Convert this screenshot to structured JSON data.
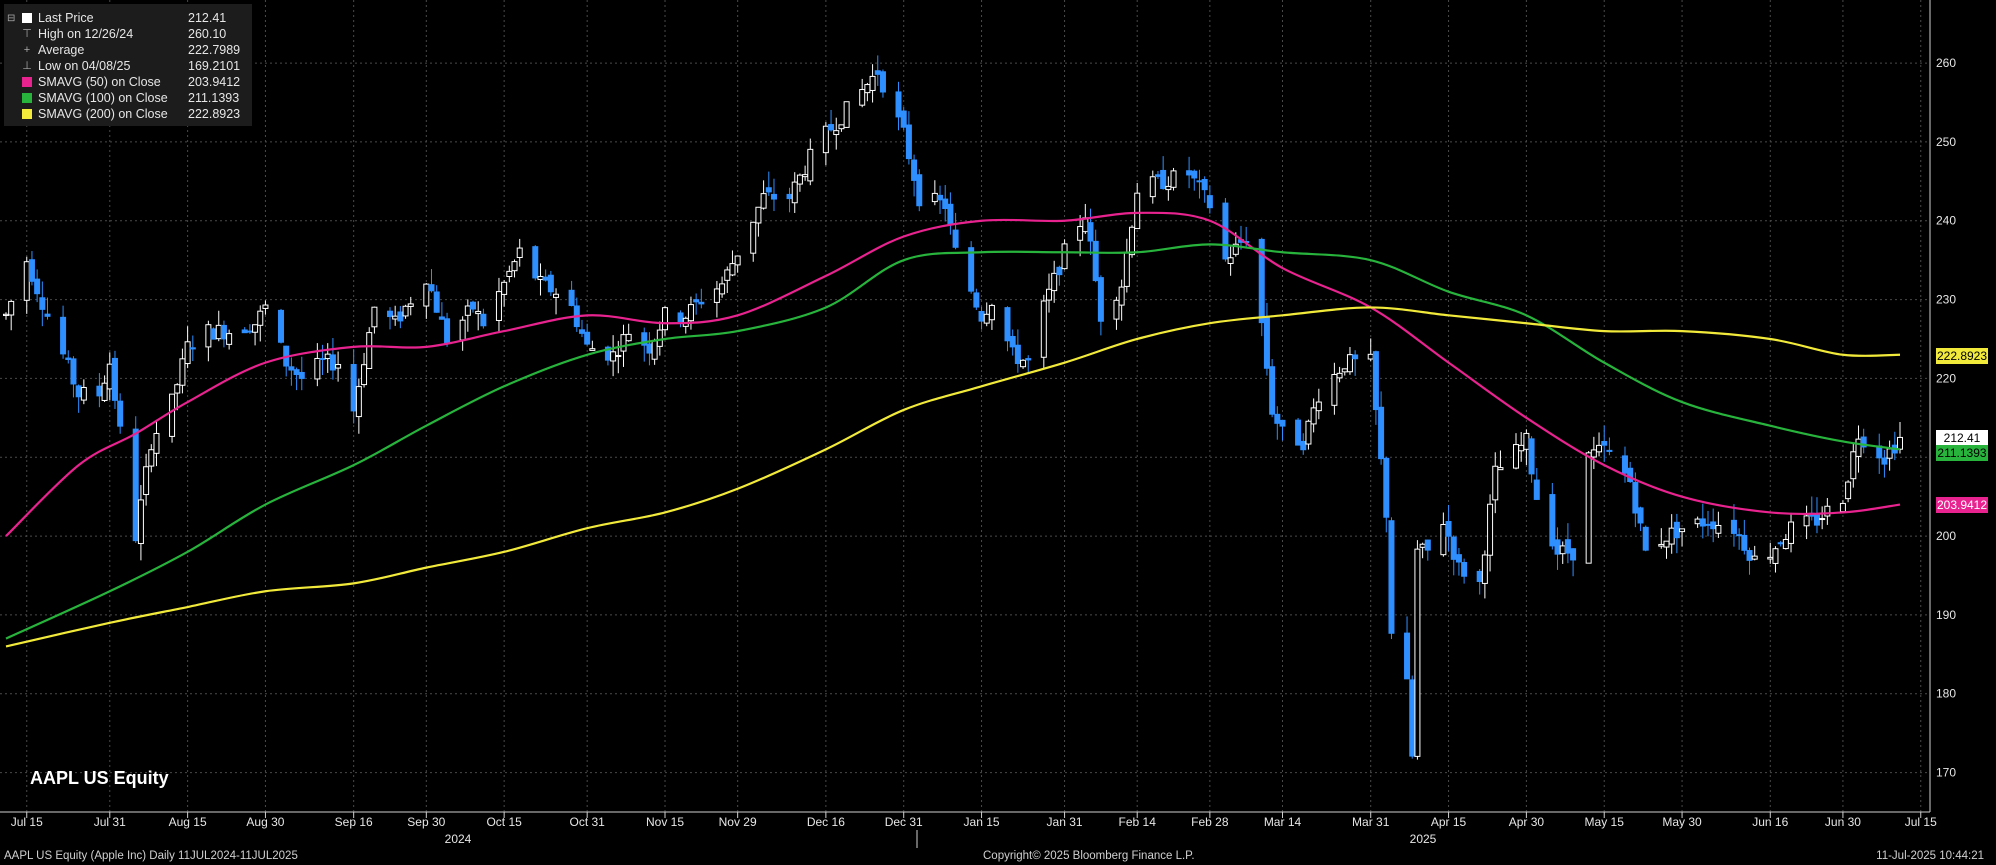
{
  "legend": {
    "items": [
      {
        "label": "Last Price",
        "value": "212.41",
        "swatch": "#ffffff",
        "kind": "square"
      },
      {
        "label": "High on 12/26/24",
        "value": "260.10",
        "glyph": "⊤",
        "kind": "glyph"
      },
      {
        "label": "Average",
        "value": "222.7989",
        "glyph": "+",
        "kind": "glyph"
      },
      {
        "label": "Low on 04/08/25",
        "value": "169.2101",
        "glyph": "⊥",
        "kind": "glyph"
      },
      {
        "label": "SMAVG (50)  on Close",
        "value": "203.9412",
        "swatch": "#e8238f",
        "kind": "square"
      },
      {
        "label": "SMAVG (100)  on Close",
        "value": "211.1393",
        "swatch": "#27b33c",
        "kind": "square"
      },
      {
        "label": "SMAVG (200)  on Close",
        "value": "222.8923",
        "swatch": "#f2ea3a",
        "kind": "square"
      }
    ]
  },
  "ticker": "AAPL US Equity",
  "footer": {
    "left": "AAPL US Equity (Apple Inc)  Daily 11JUL2024-11JUL2025",
    "center": "Copyright© 2025 Bloomberg Finance L.P.",
    "right": "11-Jul-2025 10:44:21"
  },
  "tags": [
    {
      "value": "222.8923",
      "bg": "#f2ea3a",
      "fg": "#000000",
      "y": 222.8923
    },
    {
      "value": "212.41",
      "bg": "#ffffff",
      "fg": "#000000",
      "y": 212.41
    },
    {
      "value": "211.1393",
      "bg": "#27b33c",
      "fg": "#000000",
      "y": 210.6
    },
    {
      "value": "203.9412",
      "bg": "#e8238f",
      "fg": "#ffffff",
      "y": 203.9412
    }
  ],
  "chart_data": {
    "type": "candlestick",
    "ylim": [
      165,
      268
    ],
    "y_ticks": [
      170,
      180,
      190,
      200,
      210,
      220,
      230,
      240,
      250,
      260
    ],
    "x_tick_labels": [
      "Jul 15",
      "Jul 31",
      "Aug 15",
      "Aug 30",
      "Sep 16",
      "Sep 30",
      "Oct 15",
      "Oct 31",
      "Nov 15",
      "Nov 29",
      "Dec 16",
      "Dec 31",
      "Jan 15",
      "Jan 31",
      "Feb 14",
      "Feb 28",
      "Mar 14",
      "Mar 31",
      "Apr 15",
      "Apr 30",
      "May 15",
      "May 30",
      "Jun 16",
      "Jun 30",
      "Jul 15"
    ],
    "year_labels": [
      "2024",
      "2025"
    ],
    "colors": {
      "up": "#ffffff",
      "down": "#2f8fff",
      "sma50": "#e8238f",
      "sma100": "#27b33c",
      "sma200": "#f2ea3a",
      "grid": "#4a4a4a"
    },
    "price_path": [
      [
        "Jul 11",
        228
      ],
      [
        "Jul 15",
        235
      ],
      [
        "Jul 19",
        228
      ],
      [
        "Jul 25",
        218
      ],
      [
        "Jul 29",
        218
      ],
      [
        "Jul 31",
        222
      ],
      [
        "Aug 05",
        200
      ],
      [
        "Aug 08",
        212
      ],
      [
        "Aug 12",
        217
      ],
      [
        "Aug 15",
        224
      ],
      [
        "Aug 19",
        226
      ],
      [
        "Aug 23",
        226
      ],
      [
        "Aug 28",
        227
      ],
      [
        "Aug 30",
        229
      ],
      [
        "Sep 03",
        222
      ],
      [
        "Sep 06",
        220
      ],
      [
        "Sep 10",
        222
      ],
      [
        "Sep 13",
        222
      ],
      [
        "Sep 16",
        216
      ],
      [
        "Sep 20",
        229
      ],
      [
        "Sep 24",
        227
      ],
      [
        "Sep 30",
        233
      ],
      [
        "Oct 04",
        225
      ],
      [
        "Oct 09",
        229
      ],
      [
        "Oct 11",
        227
      ],
      [
        "Oct 15",
        232
      ],
      [
        "Oct 18",
        236
      ],
      [
        "Oct 22",
        232
      ],
      [
        "Oct 25",
        231
      ],
      [
        "Oct 28",
        229
      ],
      [
        "Oct 31",
        224
      ],
      [
        "Nov 05",
        223
      ],
      [
        "Nov 08",
        226
      ],
      [
        "Nov 12",
        224
      ],
      [
        "Nov 15",
        228
      ],
      [
        "Nov 19",
        228
      ],
      [
        "Nov 22",
        230
      ],
      [
        "Nov 26",
        232
      ],
      [
        "Nov 29",
        236
      ],
      [
        "Dec 04",
        243
      ],
      [
        "Dec 09",
        243
      ],
      [
        "Dec 13",
        248
      ],
      [
        "Dec 16",
        251
      ],
      [
        "Dec 20",
        254
      ],
      [
        "Dec 26",
        259
      ],
      [
        "Dec 31",
        251
      ],
      [
        "Jan 03",
        243
      ],
      [
        "Jan 08",
        242
      ],
      [
        "Jan 10",
        236
      ],
      [
        "Jan 15",
        228
      ],
      [
        "Jan 17",
        230
      ],
      [
        "Jan 21",
        223
      ],
      [
        "Jan 24",
        222
      ],
      [
        "Jan 27",
        229
      ],
      [
        "Jan 31",
        236
      ],
      [
        "Feb 04",
        241
      ],
      [
        "Feb 07",
        228
      ],
      [
        "Feb 11",
        232
      ],
      [
        "Feb 14",
        244
      ],
      [
        "Feb 19",
        245
      ],
      [
        "Feb 24",
        246
      ],
      [
        "Feb 28",
        242
      ],
      [
        "Mar 03",
        235
      ],
      [
        "Mar 07",
        238
      ],
      [
        "Mar 10",
        227
      ],
      [
        "Mar 12",
        216
      ],
      [
        "Mar 14",
        213
      ],
      [
        "Mar 18",
        212
      ],
      [
        "Mar 21",
        218
      ],
      [
        "Mar 26",
        222
      ],
      [
        "Mar 31",
        222
      ],
      [
        "Apr 03",
        203
      ],
      [
        "Apr 04",
        188
      ],
      [
        "Apr 07",
        181
      ],
      [
        "Apr 08",
        172
      ],
      [
        "Apr 09",
        198
      ],
      [
        "Apr 11",
        198
      ],
      [
        "Apr 14",
        202
      ],
      [
        "Apr 17",
        196
      ],
      [
        "Apr 21",
        194
      ],
      [
        "Apr 24",
        208
      ],
      [
        "Apr 30",
        212
      ],
      [
        "May 02",
        205
      ],
      [
        "May 06",
        198
      ],
      [
        "May 09",
        198
      ],
      [
        "May 12",
        210
      ],
      [
        "May 15",
        211
      ],
      [
        "May 20",
        207
      ],
      [
        "May 23",
        198
      ],
      [
        "May 27",
        200
      ],
      [
        "May 30",
        201
      ],
      [
        "Jun 04",
        202
      ],
      [
        "Jun 09",
        201
      ],
      [
        "Jun 13",
        197
      ],
      [
        "Jun 16",
        198
      ],
      [
        "Jun 20",
        201
      ],
      [
        "Jun 25",
        202
      ],
      [
        "Jun 30",
        205
      ],
      [
        "Jul 03",
        213
      ],
      [
        "Jul 08",
        210
      ],
      [
        "Jul 11",
        212.41
      ]
    ],
    "series": [
      {
        "name": "SMAVG (50)  on Close",
        "values": [
          [
            "Jul 11",
            200
          ],
          [
            "Jul 25",
            209
          ],
          [
            "Aug 05",
            213
          ],
          [
            "Aug 15",
            217
          ],
          [
            "Aug 30",
            222
          ],
          [
            "Sep 16",
            224
          ],
          [
            "Sep 30",
            224
          ],
          [
            "Oct 15",
            226
          ],
          [
            "Oct 31",
            228
          ],
          [
            "Nov 15",
            227
          ],
          [
            "Nov 29",
            228
          ],
          [
            "Dec 16",
            233
          ],
          [
            "Dec 31",
            238
          ],
          [
            "Jan 15",
            240
          ],
          [
            "Jan 31",
            240
          ],
          [
            "Feb 14",
            241
          ],
          [
            "Feb 28",
            240
          ],
          [
            "Mar 14",
            234
          ],
          [
            "Mar 31",
            229
          ],
          [
            "Apr 15",
            222
          ],
          [
            "Apr 30",
            215
          ],
          [
            "May 15",
            209
          ],
          [
            "May 30",
            205
          ],
          [
            "Jun 16",
            203
          ],
          [
            "Jun 30",
            203
          ],
          [
            "Jul 11",
            204
          ]
        ]
      },
      {
        "name": "SMAVG (100)  on Close",
        "values": [
          [
            "Jul 11",
            187
          ],
          [
            "Jul 31",
            193
          ],
          [
            "Aug 15",
            198
          ],
          [
            "Aug 30",
            204
          ],
          [
            "Sep 16",
            209
          ],
          [
            "Sep 30",
            214
          ],
          [
            "Oct 15",
            219
          ],
          [
            "Oct 31",
            223
          ],
          [
            "Nov 15",
            225
          ],
          [
            "Nov 29",
            226
          ],
          [
            "Dec 16",
            229
          ],
          [
            "Dec 31",
            235
          ],
          [
            "Jan 15",
            236
          ],
          [
            "Jan 31",
            236
          ],
          [
            "Feb 14",
            236
          ],
          [
            "Feb 28",
            237
          ],
          [
            "Mar 14",
            236
          ],
          [
            "Mar 31",
            235
          ],
          [
            "Apr 15",
            231
          ],
          [
            "Apr 30",
            228
          ],
          [
            "May 15",
            222
          ],
          [
            "May 30",
            217
          ],
          [
            "Jun 16",
            214
          ],
          [
            "Jun 30",
            212
          ],
          [
            "Jul 11",
            211
          ]
        ]
      },
      {
        "name": "SMAVG (200)  on Close",
        "values": [
          [
            "Jul 11",
            186
          ],
          [
            "Jul 31",
            189
          ],
          [
            "Aug 15",
            191
          ],
          [
            "Aug 30",
            193
          ],
          [
            "Sep 16",
            194
          ],
          [
            "Sep 30",
            196
          ],
          [
            "Oct 15",
            198
          ],
          [
            "Oct 31",
            201
          ],
          [
            "Nov 15",
            203
          ],
          [
            "Nov 29",
            206
          ],
          [
            "Dec 16",
            211
          ],
          [
            "Dec 31",
            216
          ],
          [
            "Jan 15",
            219
          ],
          [
            "Jan 31",
            222
          ],
          [
            "Feb 14",
            225
          ],
          [
            "Feb 28",
            227
          ],
          [
            "Mar 14",
            228
          ],
          [
            "Mar 31",
            229
          ],
          [
            "Apr 15",
            228
          ],
          [
            "Apr 30",
            227
          ],
          [
            "May 15",
            226
          ],
          [
            "May 30",
            226
          ],
          [
            "Jun 16",
            225
          ],
          [
            "Jun 30",
            223
          ],
          [
            "Jul 11",
            223
          ]
        ]
      }
    ]
  }
}
